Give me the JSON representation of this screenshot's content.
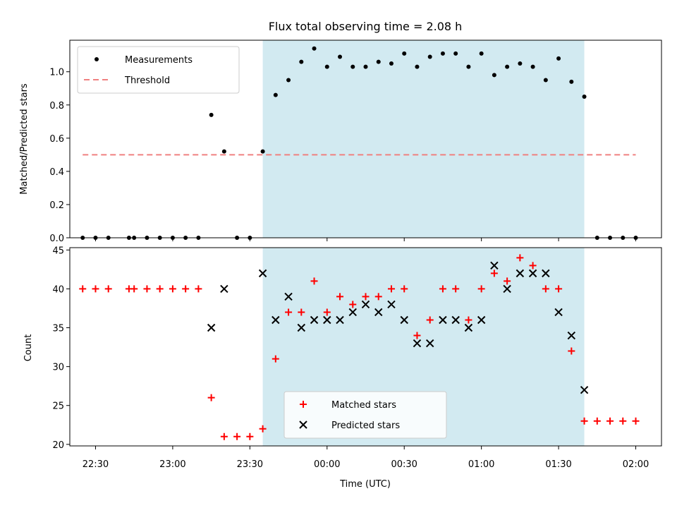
{
  "chart_data": [
    {
      "type": "scatter",
      "title": "Flux total observing time = 2.08 h",
      "xlabel": "",
      "ylabel": "Matched/Predicted stars",
      "ylim": [
        0,
        1.19
      ],
      "xlim": [
        "22:20",
        "02:10"
      ],
      "grid": false,
      "legend_position": "top-left",
      "highlight_span": {
        "from": "23:35",
        "to": "01:40",
        "color": "#add8e6"
      },
      "series": [
        {
          "name": "Measurements",
          "marker": "dot",
          "color": "#000000",
          "points": [
            [
              "22:25",
              0
            ],
            [
              "22:30",
              0
            ],
            [
              "22:35",
              0
            ],
            [
              "22:43",
              0
            ],
            [
              "22:45",
              0
            ],
            [
              "22:50",
              0
            ],
            [
              "22:55",
              0
            ],
            [
              "23:00",
              0
            ],
            [
              "23:05",
              0
            ],
            [
              "23:10",
              0
            ],
            [
              "23:15",
              0.74
            ],
            [
              "23:20",
              0.52
            ],
            [
              "23:25",
              0
            ],
            [
              "23:30",
              0
            ],
            [
              "23:35",
              0.52
            ],
            [
              "23:40",
              0.86
            ],
            [
              "23:45",
              0.95
            ],
            [
              "23:50",
              1.06
            ],
            [
              "23:55",
              1.14
            ],
            [
              "00:00",
              1.03
            ],
            [
              "00:05",
              1.09
            ],
            [
              "00:10",
              1.03
            ],
            [
              "00:15",
              1.03
            ],
            [
              "00:20",
              1.06
            ],
            [
              "00:25",
              1.05
            ],
            [
              "00:30",
              1.11
            ],
            [
              "00:35",
              1.03
            ],
            [
              "00:40",
              1.09
            ],
            [
              "00:45",
              1.11
            ],
            [
              "00:50",
              1.11
            ],
            [
              "00:55",
              1.03
            ],
            [
              "01:00",
              1.11
            ],
            [
              "01:05",
              0.98
            ],
            [
              "01:10",
              1.03
            ],
            [
              "01:15",
              1.05
            ],
            [
              "01:20",
              1.03
            ],
            [
              "01:25",
              0.95
            ],
            [
              "01:30",
              1.08
            ],
            [
              "01:35",
              0.94
            ],
            [
              "01:40",
              0.85
            ],
            [
              "01:45",
              0
            ],
            [
              "01:50",
              0
            ],
            [
              "01:55",
              0
            ],
            [
              "02:00",
              0
            ]
          ]
        },
        {
          "name": "Threshold",
          "style": "dashed-line",
          "color": "#f08080",
          "points": [
            [
              "22:25",
              0.5
            ],
            [
              "02:00",
              0.5
            ]
          ]
        }
      ],
      "yticks": [
        "0.0",
        "0.2",
        "0.4",
        "0.6",
        "0.8",
        "1.0"
      ]
    },
    {
      "type": "scatter",
      "title": "",
      "xlabel": "Time (UTC)",
      "ylabel": "Count",
      "ylim": [
        19.8,
        45.3
      ],
      "xlim": [
        "22:20",
        "02:10"
      ],
      "grid": false,
      "legend_position": "bottom-center",
      "highlight_span": {
        "from": "23:35",
        "to": "01:40",
        "color": "#add8e6"
      },
      "series": [
        {
          "name": "Matched stars",
          "marker": "plus",
          "color": "#ff0000",
          "points": [
            [
              "22:25",
              40
            ],
            [
              "22:30",
              40
            ],
            [
              "22:35",
              40
            ],
            [
              "22:43",
              40
            ],
            [
              "22:45",
              40
            ],
            [
              "22:50",
              40
            ],
            [
              "22:55",
              40
            ],
            [
              "23:00",
              40
            ],
            [
              "23:05",
              40
            ],
            [
              "23:10",
              40
            ],
            [
              "23:15",
              26
            ],
            [
              "23:20",
              21
            ],
            [
              "23:25",
              21
            ],
            [
              "23:30",
              21
            ],
            [
              "23:35",
              22
            ],
            [
              "23:40",
              31
            ],
            [
              "23:45",
              37
            ],
            [
              "23:50",
              37
            ],
            [
              "23:55",
              41
            ],
            [
              "00:00",
              37
            ],
            [
              "00:05",
              39
            ],
            [
              "00:10",
              38
            ],
            [
              "00:15",
              39
            ],
            [
              "00:20",
              39
            ],
            [
              "00:25",
              40
            ],
            [
              "00:30",
              40
            ],
            [
              "00:35",
              34
            ],
            [
              "00:40",
              36
            ],
            [
              "00:45",
              40
            ],
            [
              "00:50",
              40
            ],
            [
              "00:55",
              36
            ],
            [
              "01:00",
              40
            ],
            [
              "01:05",
              42
            ],
            [
              "01:10",
              41
            ],
            [
              "01:15",
              44
            ],
            [
              "01:20",
              43
            ],
            [
              "01:25",
              40
            ],
            [
              "01:30",
              40
            ],
            [
              "01:35",
              32
            ],
            [
              "01:40",
              23
            ],
            [
              "01:45",
              23
            ],
            [
              "01:50",
              23
            ],
            [
              "01:55",
              23
            ],
            [
              "02:00",
              23
            ]
          ]
        },
        {
          "name": "Predicted stars",
          "marker": "cross",
          "color": "#000000",
          "points": [
            [
              "23:15",
              35
            ],
            [
              "23:20",
              40
            ],
            [
              "23:35",
              42
            ],
            [
              "23:40",
              36
            ],
            [
              "23:45",
              39
            ],
            [
              "23:50",
              35
            ],
            [
              "23:55",
              36
            ],
            [
              "00:00",
              36
            ],
            [
              "00:05",
              36
            ],
            [
              "00:10",
              37
            ],
            [
              "00:15",
              38
            ],
            [
              "00:20",
              37
            ],
            [
              "00:25",
              38
            ],
            [
              "00:30",
              36
            ],
            [
              "00:35",
              33
            ],
            [
              "00:40",
              33
            ],
            [
              "00:45",
              36
            ],
            [
              "00:50",
              36
            ],
            [
              "00:55",
              35
            ],
            [
              "01:00",
              36
            ],
            [
              "01:05",
              43
            ],
            [
              "01:10",
              40
            ],
            [
              "01:15",
              42
            ],
            [
              "01:20",
              42
            ],
            [
              "01:25",
              42
            ],
            [
              "01:30",
              37
            ],
            [
              "01:35",
              34
            ],
            [
              "01:40",
              27
            ]
          ]
        }
      ],
      "yticks": [
        "20",
        "25",
        "30",
        "35",
        "40",
        "45"
      ],
      "xticks": [
        "22:30",
        "23:00",
        "23:30",
        "00:00",
        "00:30",
        "01:00",
        "01:30",
        "02:00"
      ]
    }
  ]
}
